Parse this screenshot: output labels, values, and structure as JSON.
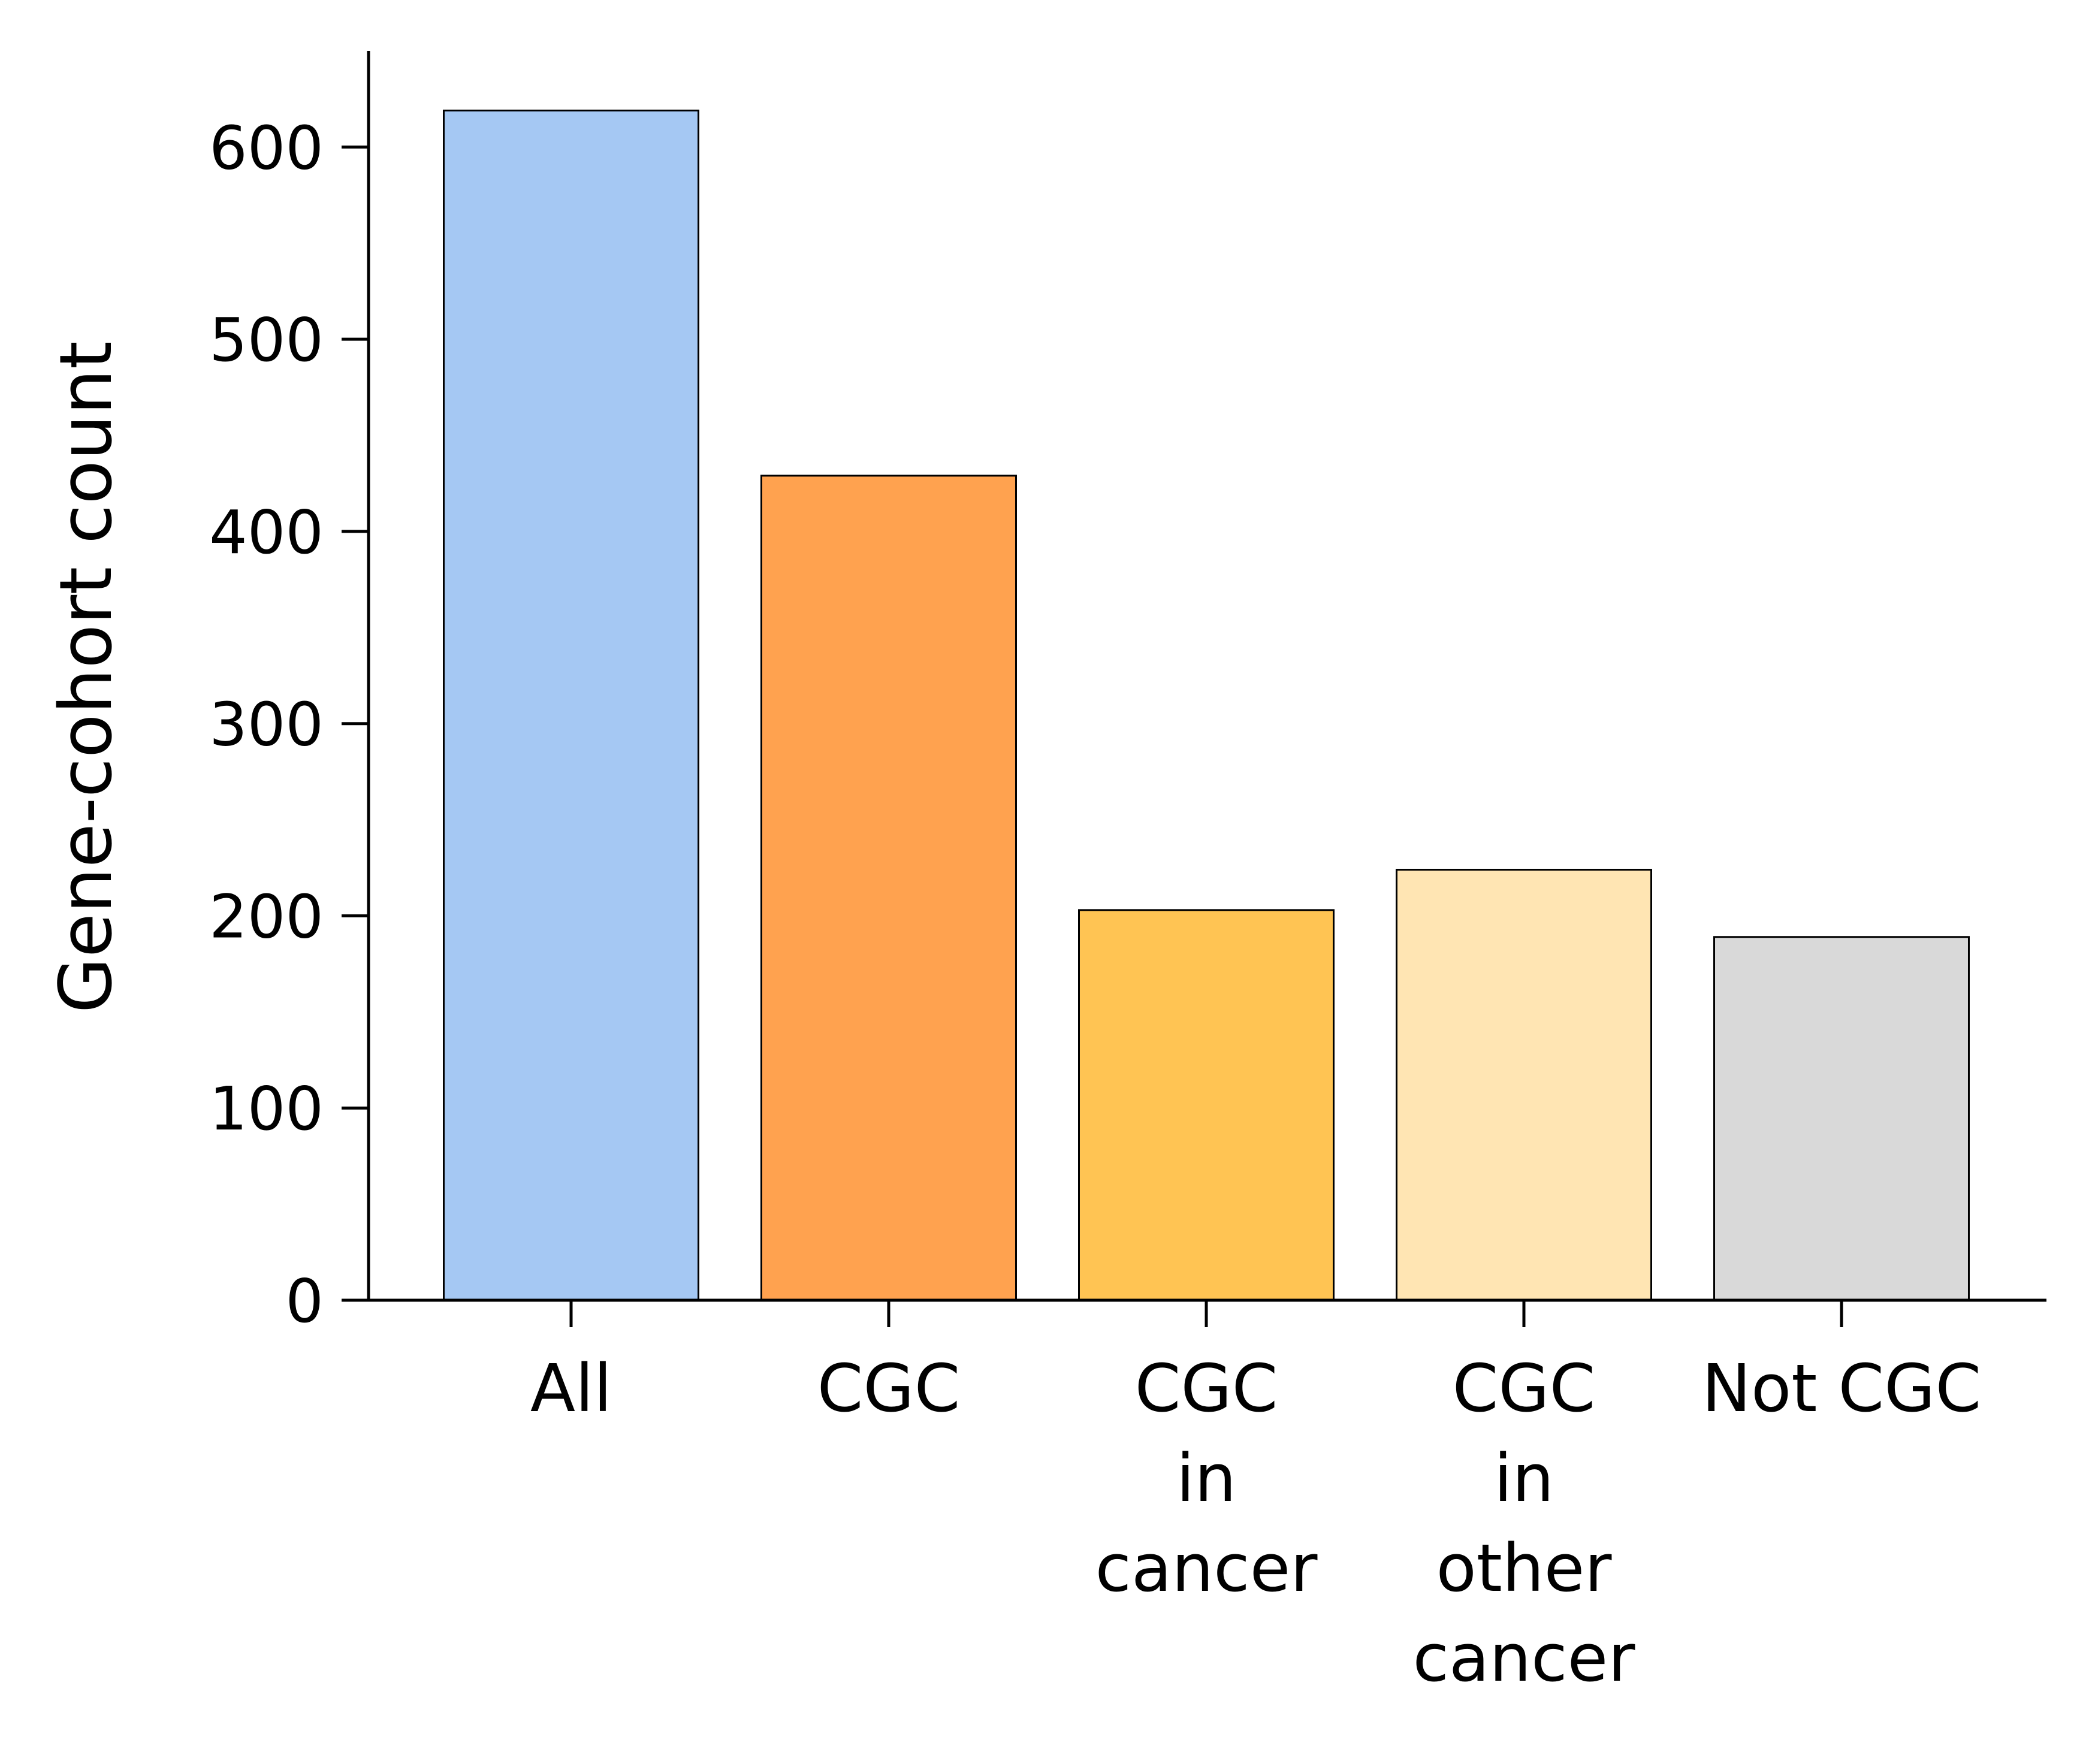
{
  "chart_data": {
    "type": "bar",
    "categories": [
      "All",
      "CGC",
      "CGC\nin\ncancer",
      "CGC\nin\nother\ncancer",
      "Not CGC"
    ],
    "values": [
      619,
      429,
      203,
      224,
      189
    ],
    "bar_colors": [
      "#a5c8f3",
      "#ffa24f",
      "#ffc453",
      "#ffe5b3",
      "#d9d9d9"
    ],
    "edge_color": "#000000",
    "title": "",
    "xlabel": "",
    "ylabel": "Gene-cohort count",
    "ylim": [
      0,
      650
    ],
    "yticks": [
      0,
      100,
      200,
      300,
      400,
      500,
      600
    ],
    "grid": false,
    "legend": "none"
  }
}
